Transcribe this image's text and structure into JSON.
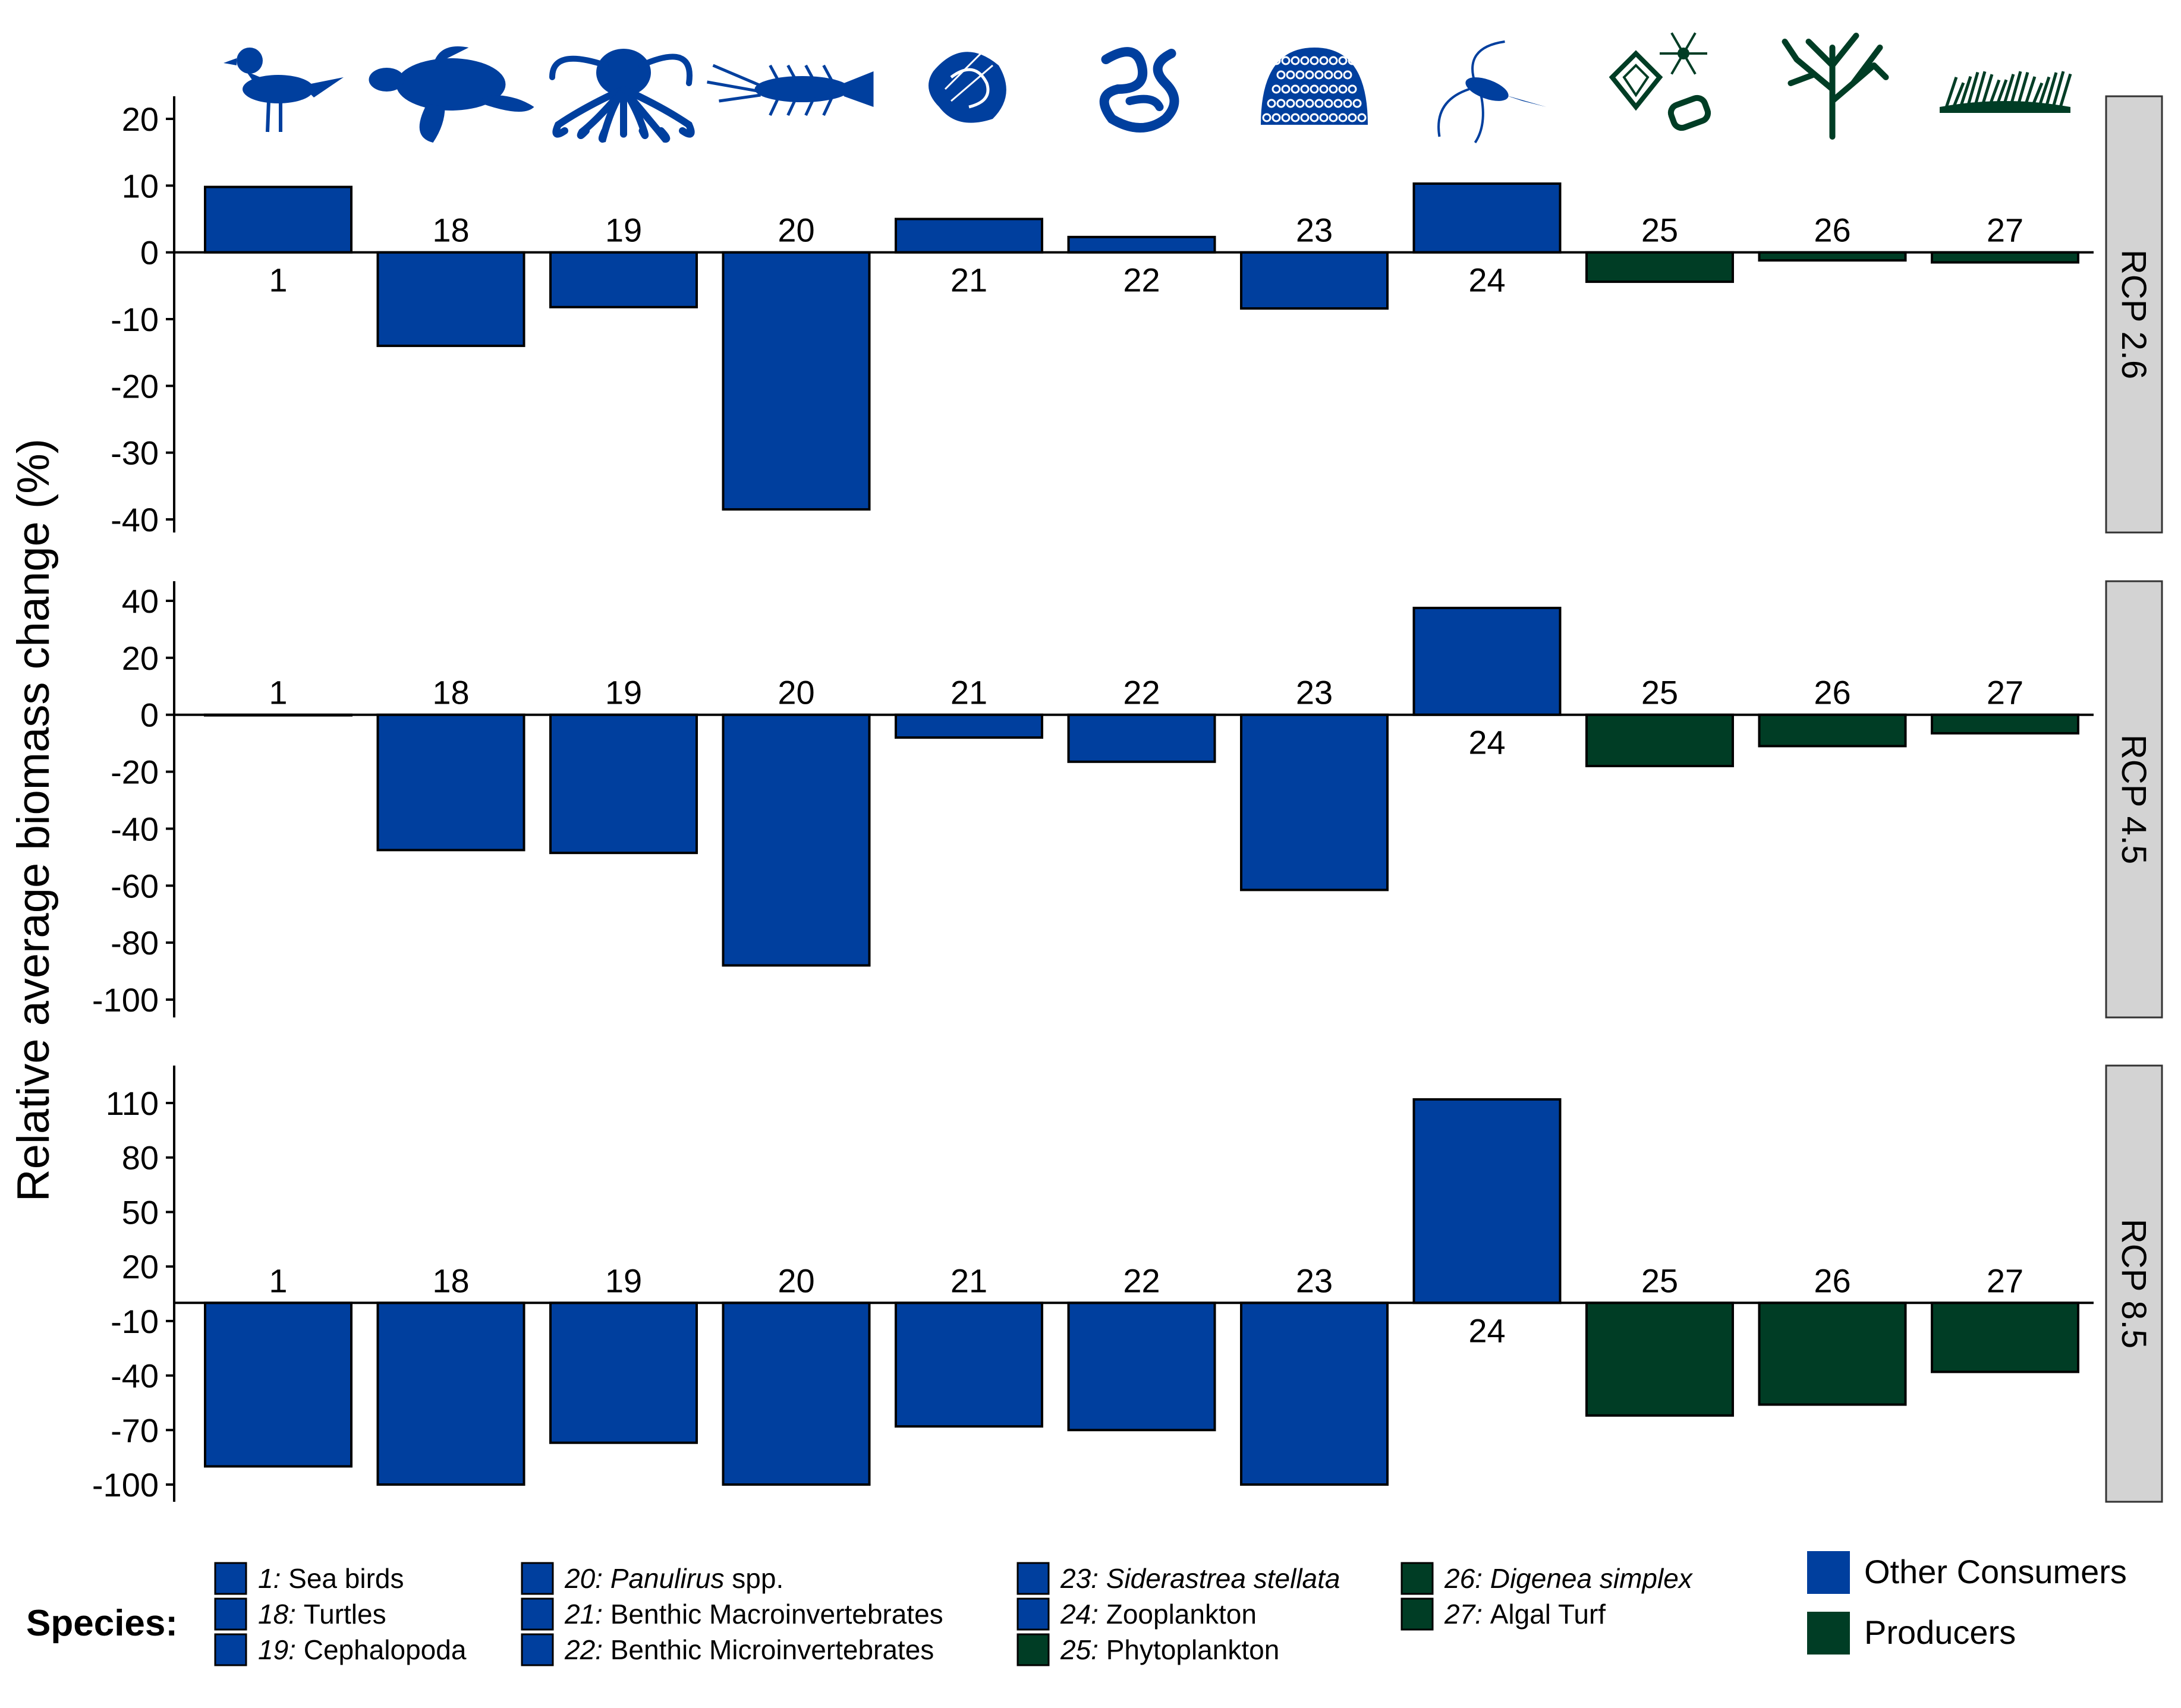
{
  "chart_data": {
    "type": "bar",
    "ylabel": "Relative average biomass change (%)",
    "categories": [
      "1",
      "18",
      "19",
      "20",
      "21",
      "22",
      "23",
      "24",
      "25",
      "26",
      "27"
    ],
    "bar_groups": [
      "consumer",
      "consumer",
      "consumer",
      "consumer",
      "consumer",
      "consumer",
      "consumer",
      "consumer",
      "producer",
      "producer",
      "producer"
    ],
    "colors": {
      "consumer": "#003f9e",
      "producer": "#003d25",
      "strip": "#d3d3d3"
    },
    "icons": [
      "seabird-icon",
      "turtle-icon",
      "octopus-icon",
      "lobster-icon",
      "shell-icon",
      "worm-icon",
      "coral-icon",
      "zooplankton-icon",
      "phytoplankton-icon",
      "seaweed-icon",
      "algal-turf-icon"
    ],
    "panels": [
      {
        "name": "RCP 2.6",
        "values": [
          9.8,
          -14,
          -8.2,
          -38.5,
          5,
          2.3,
          -8.4,
          10.3,
          -4.4,
          -1.2,
          -1.5
        ],
        "yticks": [
          20,
          10,
          0,
          -10,
          -20,
          -30,
          -40
        ],
        "ylim": [
          -43,
          23
        ]
      },
      {
        "name": "RCP 4.5",
        "values": [
          0,
          -47.5,
          -48.5,
          -88,
          -8,
          -16.5,
          -61.5,
          37.5,
          -18,
          -11,
          -6.5
        ],
        "yticks": [
          40,
          20,
          0,
          -20,
          -40,
          -60,
          -80,
          -100
        ],
        "ylim": [
          -106,
          47
        ]
      },
      {
        "name": "RCP 8.5",
        "values": [
          -90,
          -100,
          -77,
          -100,
          -68,
          -70,
          -100,
          112,
          -62,
          -56,
          -38
        ],
        "yticks": [
          110,
          80,
          50,
          20,
          -10,
          -40,
          -70,
          -100
        ],
        "ylim": [
          -111,
          131
        ]
      }
    ],
    "legend": {
      "title": "Species:",
      "entries": [
        {
          "num": "1:",
          "label": "Sea birds",
          "italic": false,
          "group": "consumer"
        },
        {
          "num": "18:",
          "label": "Turtles",
          "italic": false,
          "group": "consumer"
        },
        {
          "num": "19:",
          "label": "Cephalopoda",
          "italic": false,
          "group": "consumer"
        },
        {
          "num": "20:",
          "label": "Panulirus",
          "suffix": " spp.",
          "italic": true,
          "group": "consumer"
        },
        {
          "num": "21:",
          "label": "Benthic Macroinvertebrates",
          "italic": false,
          "group": "consumer"
        },
        {
          "num": "22:",
          "label": "Benthic Microinvertebrates",
          "italic": false,
          "group": "consumer"
        },
        {
          "num": "23:",
          "label": "Siderastrea stellata",
          "italic": true,
          "group": "consumer"
        },
        {
          "num": "24:",
          "label": "Zooplankton",
          "italic": false,
          "group": "consumer"
        },
        {
          "num": "25:",
          "label": "Phytoplankton",
          "italic": false,
          "group": "producer"
        },
        {
          "num": "26:",
          "label": "Digenea simplex",
          "italic": true,
          "group": "producer"
        },
        {
          "num": "27:",
          "label": "Algal Turf",
          "italic": false,
          "group": "producer"
        }
      ],
      "groups": [
        {
          "label": "Other Consumers",
          "group": "consumer"
        },
        {
          "label": "Producers",
          "group": "producer"
        }
      ]
    }
  }
}
